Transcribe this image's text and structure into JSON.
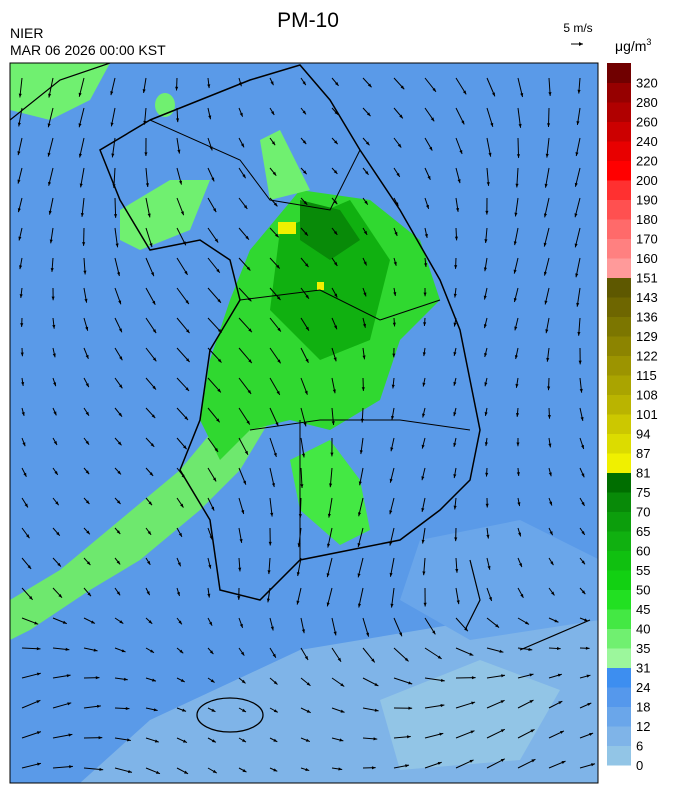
{
  "header": {
    "title": "PM-10",
    "agency": "NIER",
    "datetime": "MAR 06 2026 00:00 KST",
    "wind_scale": "5 m/s"
  },
  "legend": {
    "unit": "μg/m",
    "unit_superscript": "3",
    "levels": [
      0,
      6,
      12,
      18,
      24,
      31,
      35,
      40,
      45,
      50,
      55,
      60,
      65,
      70,
      75,
      81,
      87,
      94,
      101,
      108,
      115,
      122,
      129,
      136,
      143,
      151,
      160,
      170,
      180,
      190,
      200,
      220,
      240,
      260,
      280,
      320
    ],
    "colors": [
      "#92c5e6",
      "#7fb4e8",
      "#6aa6ea",
      "#5598ec",
      "#3d8ef0",
      "#9cf79c",
      "#70f070",
      "#44e844",
      "#22e022",
      "#12d012",
      "#10c010",
      "#10b010",
      "#0c9e0c",
      "#088a08",
      "#006e00",
      "#f0f000",
      "#dcdc00",
      "#ccc800",
      "#bab400",
      "#aaa400",
      "#9c9400",
      "#8c8400",
      "#7c7600",
      "#6e6600",
      "#5e5800",
      "#ff9a9a",
      "#ff8080",
      "#ff6a6a",
      "#ff5050",
      "#ff3030",
      "#ff0000",
      "#e80000",
      "#cc0000",
      "#b00000",
      "#960000",
      "#700000"
    ]
  }
}
